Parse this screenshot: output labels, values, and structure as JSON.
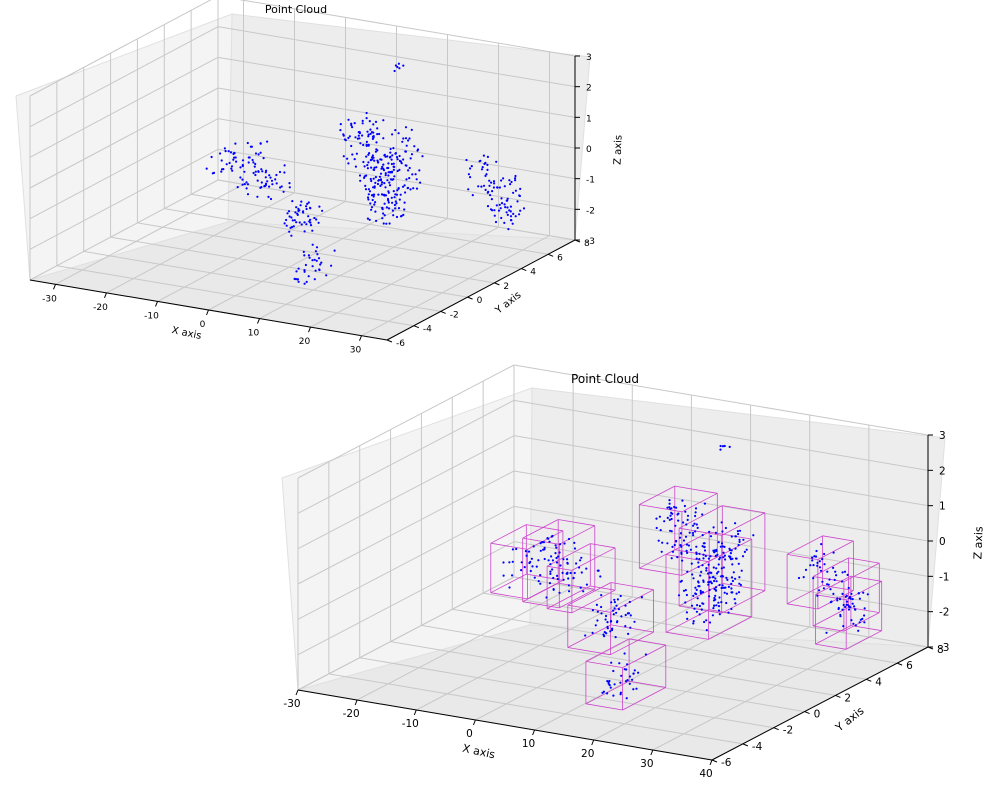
{
  "chart_data": [
    {
      "type": "scatter3d",
      "title": "Point Cloud",
      "xlabel": "X axis",
      "ylabel": "Y axis",
      "zlabel": "Z axis",
      "xlim": [
        -35,
        35
      ],
      "ylim": [
        -6,
        8
      ],
      "zlim": [
        -3,
        3
      ],
      "xticks": [
        -30,
        -20,
        -10,
        0,
        10,
        20,
        30
      ],
      "yticks": [
        -6,
        -4,
        -2,
        0,
        2,
        4,
        6,
        8
      ],
      "zticks": [
        -3,
        -2,
        -1,
        0,
        1,
        2,
        3
      ],
      "grid": true,
      "point_color": "#0000ff",
      "pane_color": "#f2f2f2",
      "clusters": [
        {
          "center": [
            -25,
            5,
            -1.6
          ],
          "size": [
            5,
            1.5,
            1.2
          ],
          "n": 30
        },
        {
          "center": [
            -17,
            4,
            -1.2
          ],
          "size": [
            5,
            1.5,
            1.6
          ],
          "n": 45
        },
        {
          "center": [
            -8,
            2,
            -0.9
          ],
          "size": [
            3,
            2,
            1.0
          ],
          "n": 20
        },
        {
          "center": [
            -3,
            2,
            -1.9
          ],
          "size": [
            6,
            2,
            1.0
          ],
          "n": 50
        },
        {
          "center": [
            -2,
            6,
            -0.3
          ],
          "size": [
            6,
            1.5,
            1.6
          ],
          "n": 70
        },
        {
          "center": [
            8,
            5,
            -0.6
          ],
          "size": [
            6,
            2,
            2.0
          ],
          "n": 80
        },
        {
          "center": [
            11,
            3,
            -0.8
          ],
          "size": [
            6,
            2,
            2.0
          ],
          "n": 120
        },
        {
          "center": [
            10,
            -2,
            -2.2
          ],
          "size": [
            5,
            2,
            1.0
          ],
          "n": 35
        },
        {
          "center": [
            22,
            6,
            -0.8
          ],
          "size": [
            4,
            1.5,
            1.2
          ],
          "n": 30
        },
        {
          "center": [
            29,
            5,
            -1.0
          ],
          "size": [
            4,
            1.5,
            1.2
          ],
          "n": 30
        },
        {
          "center": [
            32,
            4,
            -1.2
          ],
          "size": [
            4,
            1.5,
            1.2
          ],
          "n": 28
        },
        {
          "center": [
            3,
            7,
            2.0
          ],
          "size": [
            1,
            0.5,
            0.2
          ],
          "n": 6
        }
      ],
      "bounding_boxes": false
    },
    {
      "type": "scatter3d",
      "title": "Point Cloud",
      "xlabel": "X axis",
      "ylabel": "Y axis",
      "zlabel": "Z axis",
      "xlim": [
        -30,
        40
      ],
      "ylim": [
        -6,
        8
      ],
      "zlim": [
        -3,
        3
      ],
      "xticks": [
        -30,
        -20,
        -10,
        0,
        10,
        20,
        30,
        40
      ],
      "yticks": [
        -6,
        -4,
        -2,
        0,
        2,
        4,
        6,
        8
      ],
      "zticks": [
        -3,
        -2,
        -1,
        0,
        1,
        2,
        3
      ],
      "grid": true,
      "point_color": "#0000ff",
      "box_color": "#cc44cc",
      "pane_color": "#f2f2f2",
      "clusters": [
        {
          "center": [
            -20,
            5,
            -1.6
          ],
          "size": [
            5,
            1.5,
            1.2
          ],
          "n": 30
        },
        {
          "center": [
            -12,
            4,
            -1.2
          ],
          "size": [
            5,
            1.5,
            1.6
          ],
          "n": 45
        },
        {
          "center": [
            -3,
            2,
            -0.9
          ],
          "size": [
            3,
            2,
            1.0
          ],
          "n": 20
        },
        {
          "center": [
            2,
            2,
            -1.9
          ],
          "size": [
            6,
            2,
            1.0
          ],
          "n": 50
        },
        {
          "center": [
            3,
            6,
            -0.3
          ],
          "size": [
            6,
            1.5,
            1.6
          ],
          "n": 70
        },
        {
          "center": [
            13,
            5,
            -0.6
          ],
          "size": [
            6,
            2,
            2.0
          ],
          "n": 80
        },
        {
          "center": [
            16,
            3,
            -0.8
          ],
          "size": [
            6,
            2,
            2.0
          ],
          "n": 120
        },
        {
          "center": [
            15,
            -2,
            -2.2
          ],
          "size": [
            5,
            2,
            1.0
          ],
          "n": 35
        },
        {
          "center": [
            27,
            6,
            -0.8
          ],
          "size": [
            4,
            1.5,
            1.2
          ],
          "n": 30
        },
        {
          "center": [
            34,
            5,
            -1.0
          ],
          "size": [
            4,
            1.5,
            1.2
          ],
          "n": 30
        },
        {
          "center": [
            37,
            4,
            -1.2
          ],
          "size": [
            4,
            1.5,
            1.2
          ],
          "n": 28
        },
        {
          "center": [
            8,
            7,
            2.0
          ],
          "size": [
            1,
            0.5,
            0.2
          ],
          "n": 6
        }
      ],
      "bounding_boxes": true
    }
  ]
}
